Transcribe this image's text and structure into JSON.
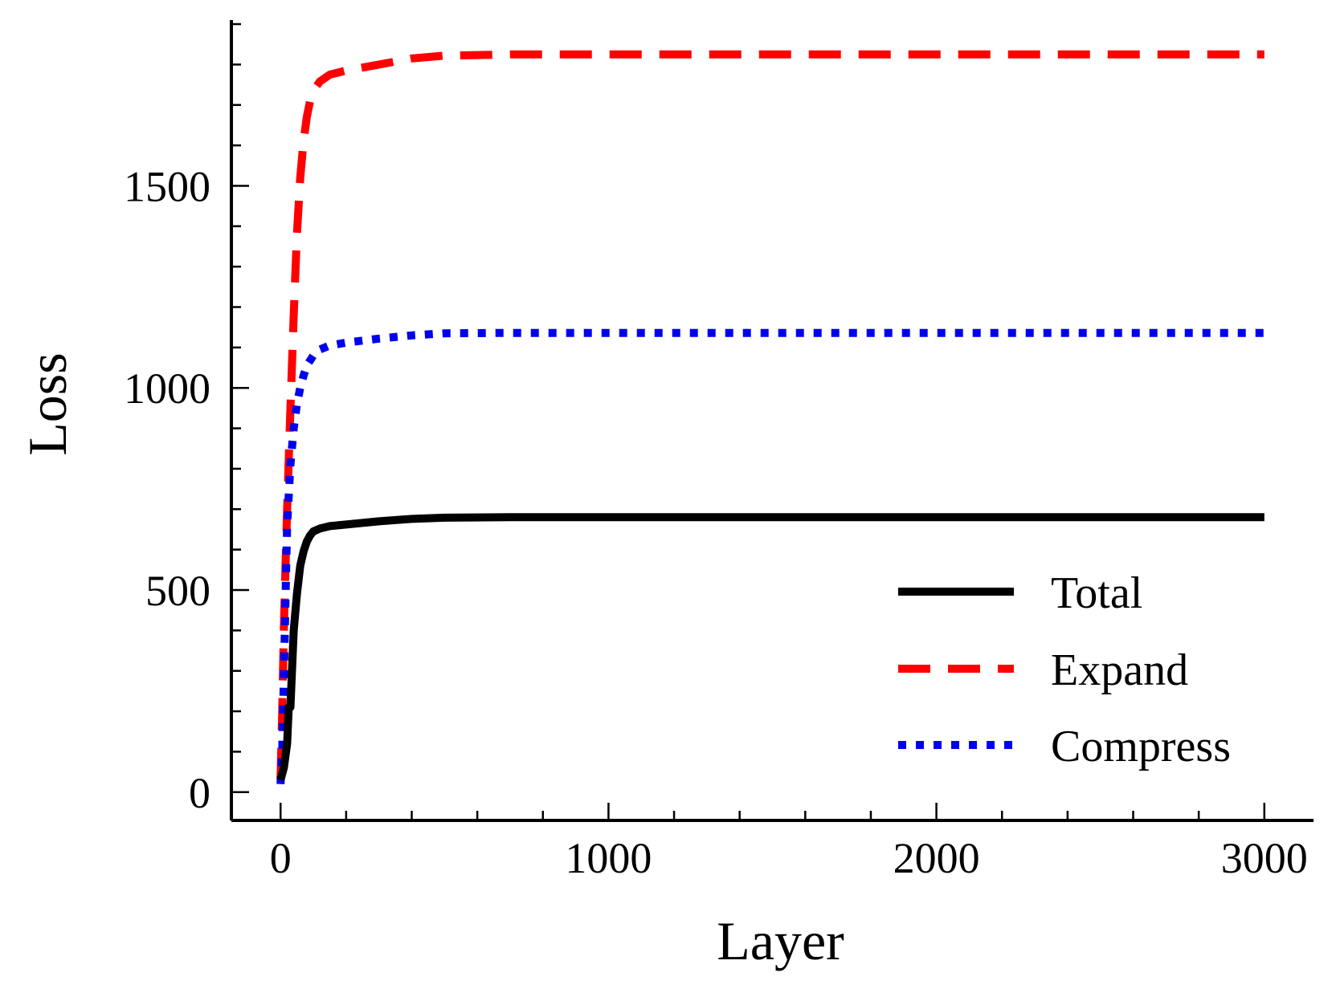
{
  "chart_data": {
    "type": "line",
    "xlabel": "Layer",
    "ylabel": "Loss",
    "xlim": [
      -150,
      3150
    ],
    "ylim": [
      -70,
      1910
    ],
    "x_ticks": [
      0,
      1000,
      2000,
      3000
    ],
    "y_ticks": [
      0,
      500,
      1000,
      1500
    ],
    "x_minor_step": 200,
    "y_minor_step": 100,
    "grid": false,
    "legend_position": "bottom-right",
    "series": [
      {
        "name": "Total",
        "color": "#000000",
        "style": "solid",
        "x": [
          0,
          10,
          20,
          25,
          30,
          40,
          50,
          60,
          70,
          80,
          90,
          100,
          120,
          150,
          200,
          300,
          400,
          500,
          700,
          1000,
          2000,
          3000
        ],
        "y": [
          30,
          60,
          120,
          210,
          210,
          400,
          490,
          560,
          595,
          620,
          635,
          645,
          652,
          658,
          662,
          670,
          676,
          679,
          680,
          680,
          680,
          680
        ]
      },
      {
        "name": "Expand",
        "color": "#ff0000",
        "style": "dashed",
        "x": [
          0,
          5,
          10,
          15,
          20,
          30,
          40,
          50,
          60,
          70,
          80,
          90,
          100,
          120,
          150,
          200,
          300,
          400,
          500,
          700,
          1000,
          2000,
          3000
        ],
        "y": [
          30,
          200,
          400,
          560,
          700,
          950,
          1180,
          1380,
          1520,
          1610,
          1670,
          1710,
          1735,
          1758,
          1775,
          1785,
          1800,
          1815,
          1822,
          1825,
          1825,
          1825,
          1825
        ]
      },
      {
        "name": "Compress",
        "color": "#0000ee",
        "style": "dotted",
        "x": [
          0,
          5,
          10,
          15,
          20,
          30,
          40,
          50,
          60,
          70,
          80,
          100,
          120,
          150,
          200,
          300,
          400,
          500,
          700,
          1000,
          2000,
          3000
        ],
        "y": [
          20,
          100,
          280,
          480,
          660,
          810,
          900,
          960,
          1000,
          1030,
          1055,
          1080,
          1095,
          1105,
          1112,
          1122,
          1130,
          1135,
          1136,
          1136,
          1136,
          1136
        ]
      }
    ]
  }
}
